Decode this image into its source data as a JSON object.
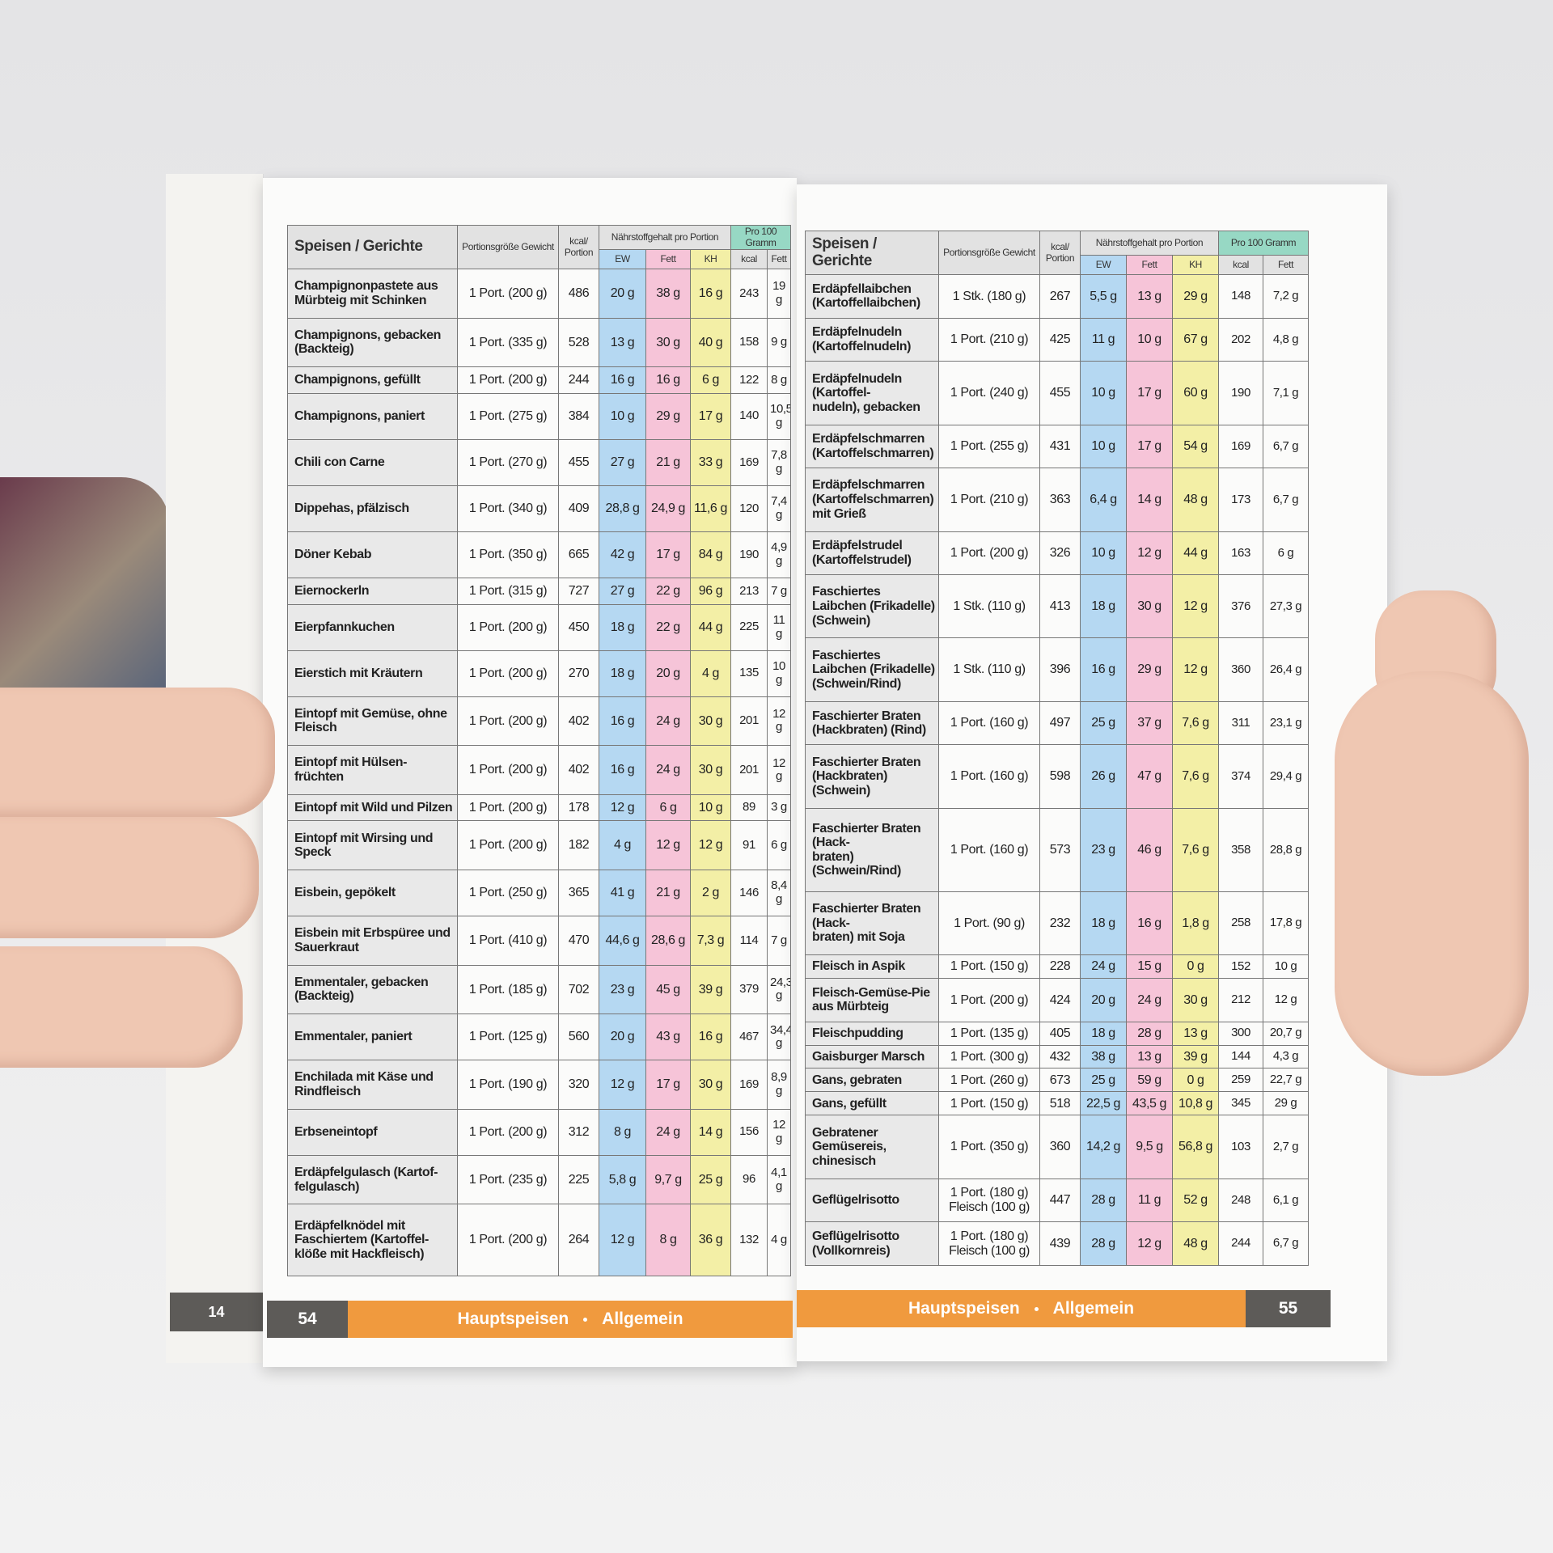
{
  "back_page_number": "14",
  "pages": [
    {
      "number": "54",
      "section": "Hauptspeisen",
      "subsection": "Allgemein",
      "table": {
        "header": {
          "dish": "Speisen / Gerichte",
          "portion": "Portionsgröße Gewicht",
          "kcal": "kcal/ Portion",
          "group_portion": "Nährstoffgehalt pro Portion",
          "group_100g": "Pro 100 Gramm",
          "sub": [
            "EW",
            "Fett",
            "KH",
            "kcal",
            "Fett"
          ]
        },
        "rows": [
          [
            "Champignonpastete aus Mürbteig mit Schinken",
            "1 Port. (200 g)",
            "486",
            "20 g",
            "38 g",
            "16 g",
            "243",
            "19 g"
          ],
          [
            "Champignons, gebacken (Backteig)",
            "1 Port. (335 g)",
            "528",
            "13 g",
            "30 g",
            "40 g",
            "158",
            "9 g"
          ],
          [
            "Champignons, gefüllt",
            "1 Port. (200 g)",
            "244",
            "16 g",
            "16 g",
            "6 g",
            "122",
            "8 g"
          ],
          [
            "Champignons, paniert",
            "1 Port. (275 g)",
            "384",
            "10 g",
            "29 g",
            "17 g",
            "140",
            "10,5 g"
          ],
          [
            "Chili con Carne",
            "1 Port. (270 g)",
            "455",
            "27 g",
            "21 g",
            "33 g",
            "169",
            "7,8 g"
          ],
          [
            "Dippehas, pfälzisch",
            "1 Port. (340 g)",
            "409",
            "28,8 g",
            "24,9 g",
            "11,6 g",
            "120",
            "7,4 g"
          ],
          [
            "Döner Kebab",
            "1 Port. (350 g)",
            "665",
            "42 g",
            "17 g",
            "84 g",
            "190",
            "4,9 g"
          ],
          [
            "Eiernockerln",
            "1 Port. (315 g)",
            "727",
            "27 g",
            "22 g",
            "96 g",
            "213",
            "7 g"
          ],
          [
            "Eierpfannkuchen",
            "1 Port. (200 g)",
            "450",
            "18 g",
            "22 g",
            "44 g",
            "225",
            "11 g"
          ],
          [
            "Eierstich mit Kräutern",
            "1 Port. (200 g)",
            "270",
            "18 g",
            "20 g",
            "4 g",
            "135",
            "10 g"
          ],
          [
            "Eintopf mit Gemüse, ohne Fleisch",
            "1 Port. (200 g)",
            "402",
            "16 g",
            "24 g",
            "30 g",
            "201",
            "12 g"
          ],
          [
            "Eintopf mit Hülsen-\nfrüchten",
            "1 Port. (200 g)",
            "402",
            "16 g",
            "24 g",
            "30 g",
            "201",
            "12 g"
          ],
          [
            "Eintopf mit Wild und Pilzen",
            "1 Port. (200 g)",
            "178",
            "12 g",
            "6 g",
            "10 g",
            "89",
            "3 g"
          ],
          [
            "Eintopf mit Wirsing und Speck",
            "1 Port. (200 g)",
            "182",
            "4 g",
            "12 g",
            "12 g",
            "91",
            "6 g"
          ],
          [
            "Eisbein, gepökelt",
            "1 Port. (250 g)",
            "365",
            "41 g",
            "21 g",
            "2 g",
            "146",
            "8,4 g"
          ],
          [
            "Eisbein mit Erbspüree und Sauerkraut",
            "1 Port. (410 g)",
            "470",
            "44,6 g",
            "28,6 g",
            "7,3 g",
            "114",
            "7 g"
          ],
          [
            "Emmentaler, gebacken (Backteig)",
            "1 Port. (185 g)",
            "702",
            "23 g",
            "45 g",
            "39 g",
            "379",
            "24,3 g"
          ],
          [
            "Emmentaler, paniert",
            "1 Port. (125 g)",
            "560",
            "20 g",
            "43 g",
            "16 g",
            "467",
            "34,4 g"
          ],
          [
            "Enchilada mit Käse und Rindfleisch",
            "1 Port. (190 g)",
            "320",
            "12 g",
            "17 g",
            "30 g",
            "169",
            "8,9 g"
          ],
          [
            "Erbseneintopf",
            "1 Port. (200 g)",
            "312",
            "8 g",
            "24 g",
            "14 g",
            "156",
            "12 g"
          ],
          [
            "Erdäpfelgulasch (Kartof-\nfelgulasch)",
            "1 Port. (235 g)",
            "225",
            "5,8 g",
            "9,7 g",
            "25 g",
            "96",
            "4,1 g"
          ],
          [
            "Erdäpfelknödel mit Faschiertem (Kartoffel-\nklöße mit Hackfleisch)",
            "1 Port. (200 g)",
            "264",
            "12 g",
            "8 g",
            "36 g",
            "132",
            "4 g"
          ]
        ]
      }
    },
    {
      "number": "55",
      "section": "Hauptspeisen",
      "subsection": "Allgemein",
      "table": {
        "header": {
          "dish": "Speisen / Gerichte",
          "portion": "Portionsgröße Gewicht",
          "kcal": "kcal/ Portion",
          "group_portion": "Nährstoffgehalt pro Portion",
          "group_100g": "Pro 100 Gramm",
          "sub": [
            "EW",
            "Fett",
            "KH",
            "kcal",
            "Fett"
          ]
        },
        "rows": [
          [
            "Erdäpfellaibchen (Kartoffellaibchen)",
            "1 Stk. (180 g)",
            "267",
            "5,5 g",
            "13 g",
            "29 g",
            "148",
            "7,2 g"
          ],
          [
            "Erdäpfelnudeln (Kartoffelnudeln)",
            "1 Port. (210 g)",
            "425",
            "11 g",
            "10 g",
            "67 g",
            "202",
            "4,8 g"
          ],
          [
            "Erdäpfelnudeln (Kartoffel-\nnudeln), gebacken",
            "1 Port. (240 g)",
            "455",
            "10 g",
            "17 g",
            "60 g",
            "190",
            "7,1 g"
          ],
          [
            "Erdäpfelschmarren (Kartoffelschmarren)",
            "1 Port. (255 g)",
            "431",
            "10 g",
            "17 g",
            "54 g",
            "169",
            "6,7 g"
          ],
          [
            "Erdäpfelschmarren (Kartoffelschmarren) mit Grieß",
            "1 Port. (210 g)",
            "363",
            "6,4 g",
            "14 g",
            "48 g",
            "173",
            "6,7 g"
          ],
          [
            "Erdäpfelstrudel (Kartoffelstrudel)",
            "1 Port. (200 g)",
            "326",
            "10 g",
            "12 g",
            "44 g",
            "163",
            "6 g"
          ],
          [
            "Faschiertes Laibchen (Frikadelle) (Schwein)",
            "1 Stk. (110 g)",
            "413",
            "18 g",
            "30 g",
            "12 g",
            "376",
            "27,3 g"
          ],
          [
            "Faschiertes Laibchen (Frikadelle) (Schwein/Rind)",
            "1 Stk. (110 g)",
            "396",
            "16 g",
            "29 g",
            "12 g",
            "360",
            "26,4 g"
          ],
          [
            "Faschierter Braten (Hackbraten) (Rind)",
            "1 Port. (160 g)",
            "497",
            "25 g",
            "37 g",
            "7,6 g",
            "311",
            "23,1 g"
          ],
          [
            "Faschierter Braten (Hackbraten) (Schwein)",
            "1 Port. (160 g)",
            "598",
            "26 g",
            "47 g",
            "7,6 g",
            "374",
            "29,4 g"
          ],
          [
            "Faschierter Braten (Hack-\nbraten) (Schwein/Rind)",
            "1 Port. (160 g)",
            "573",
            "23 g",
            "46 g",
            "7,6 g",
            "358",
            "28,8 g"
          ],
          [
            "Faschierter Braten (Hack-\nbraten) mit Soja",
            "1 Port. (90 g)",
            "232",
            "18 g",
            "16 g",
            "1,8 g",
            "258",
            "17,8 g"
          ],
          [
            "Fleisch in Aspik",
            "1 Port. (150 g)",
            "228",
            "24 g",
            "15 g",
            "0 g",
            "152",
            "10 g"
          ],
          [
            "Fleisch-Gemüse-Pie aus Mürbteig",
            "1 Port. (200 g)",
            "424",
            "20 g",
            "24 g",
            "30 g",
            "212",
            "12 g"
          ],
          [
            "Fleischpudding",
            "1 Port. (135 g)",
            "405",
            "18 g",
            "28 g",
            "13 g",
            "300",
            "20,7 g"
          ],
          [
            "Gaisburger Marsch",
            "1 Port. (300 g)",
            "432",
            "38 g",
            "13 g",
            "39 g",
            "144",
            "4,3 g"
          ],
          [
            "Gans, gebraten",
            "1 Port. (260 g)",
            "673",
            "25 g",
            "59 g",
            "0 g",
            "259",
            "22,7 g"
          ],
          [
            "Gans, gefüllt",
            "1 Port. (150 g)",
            "518",
            "22,5 g",
            "43,5 g",
            "10,8 g",
            "345",
            "29 g"
          ],
          [
            "Gebratener Gemüsereis, chinesisch",
            "1 Port. (350 g)",
            "360",
            "14,2 g",
            "9,5 g",
            "56,8 g",
            "103",
            "2,7 g"
          ],
          [
            "Geflügelrisotto",
            "1 Port. (180 g)\nFleisch (100 g)",
            "447",
            "28 g",
            "11 g",
            "52 g",
            "248",
            "6,1 g"
          ],
          [
            "Geflügelrisotto (Vollkornreis)",
            "1 Port. (180 g)\nFleisch (100 g)",
            "439",
            "28 g",
            "12 g",
            "48 g",
            "244",
            "6,7 g"
          ]
        ]
      }
    }
  ]
}
